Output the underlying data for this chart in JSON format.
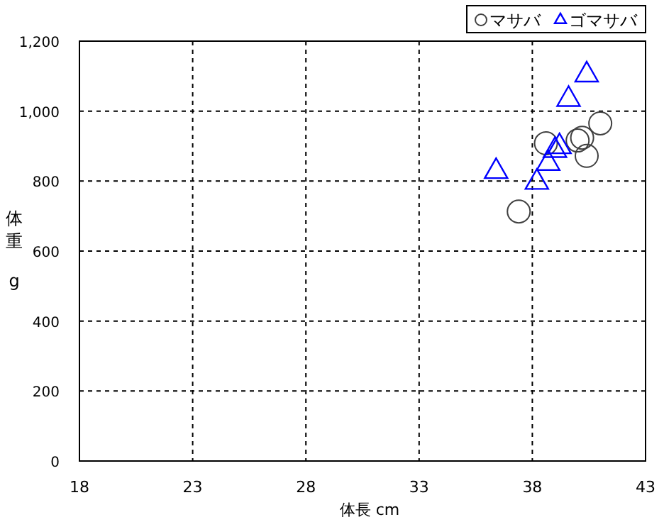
{
  "chart_data": {
    "type": "scatter",
    "xlabel": "体長 cm",
    "ylabel": "体重 g",
    "xlim": [
      18,
      43
    ],
    "xticks": [
      18,
      23,
      28,
      33,
      38,
      43
    ],
    "ylim": [
      0,
      1200
    ],
    "yticks": [
      {
        "value": 0,
        "label": "0"
      },
      {
        "value": 200,
        "label": "200"
      },
      {
        "value": 400,
        "label": "400"
      },
      {
        "value": 600,
        "label": "600"
      },
      {
        "value": 800,
        "label": "800"
      },
      {
        "value": 1000,
        "label": "1,000"
      },
      {
        "value": 1200,
        "label": "1,200"
      }
    ],
    "grid": true,
    "legend": "top right",
    "series": [
      {
        "name": "マサバ",
        "color": "#404040",
        "marker": "circle",
        "x": [
          37.4,
          38.6,
          40.0,
          40.2,
          40.4,
          41.0
        ],
        "values": [
          713,
          908,
          916,
          924,
          872,
          965
        ]
      },
      {
        "name": "ゴマサバ",
        "color": "#0000ff",
        "marker": "triangle",
        "x": [
          36.4,
          38.2,
          38.7,
          39.0,
          39.2,
          39.6,
          40.4
        ],
        "values": [
          828,
          797,
          851,
          888,
          899,
          1034,
          1104
        ]
      }
    ]
  }
}
